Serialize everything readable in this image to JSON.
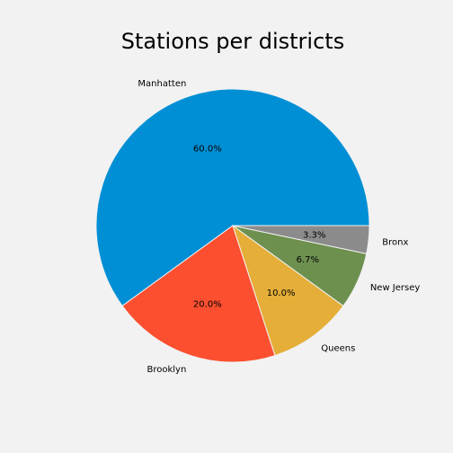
{
  "chart_data": {
    "type": "pie",
    "title": "Stations per districts",
    "categories": [
      "Manhatten",
      "Brooklyn",
      "Queens",
      "New Jersey",
      "Bronx"
    ],
    "values": [
      60.0,
      20.0,
      10.0,
      6.7,
      3.3
    ],
    "percent_labels": [
      "60.0%",
      "20.0%",
      "10.0%",
      "6.7%",
      "3.3%"
    ],
    "colors": [
      "#008fd5",
      "#fc4f30",
      "#e5ae38",
      "#6d904f",
      "#8b8b8b"
    ],
    "start_angle_deg": 0,
    "direction": "counterclockwise",
    "legend": "none"
  }
}
